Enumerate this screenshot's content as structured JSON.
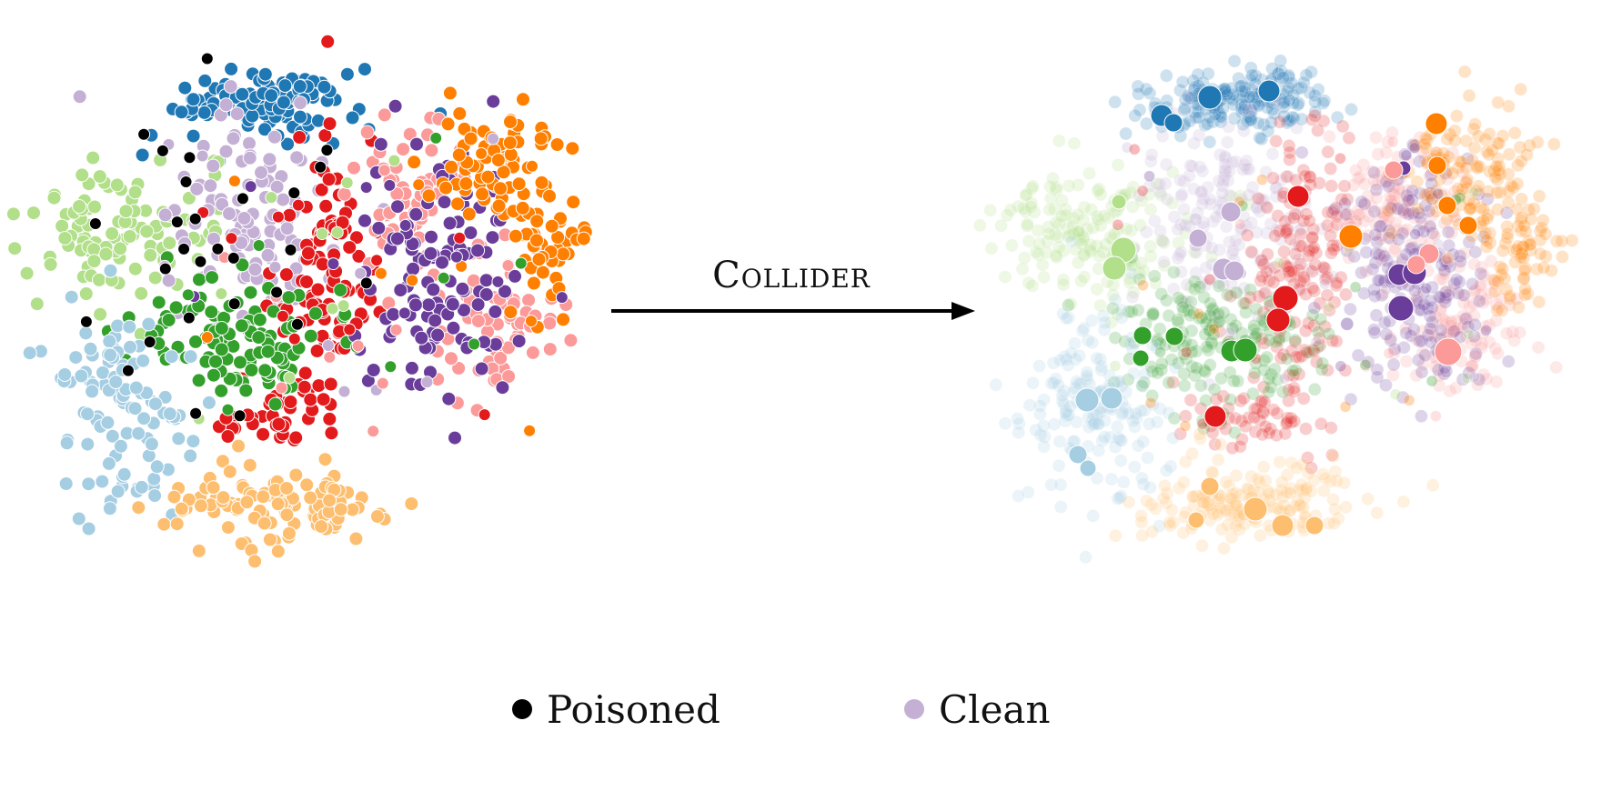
{
  "arrow_label": "Collider",
  "legend": [
    {
      "label": "Poisoned",
      "color": "#000000"
    },
    {
      "label": "Clean",
      "color": "#c5b0d5"
    }
  ],
  "palette": {
    "blue": "#1f78b4",
    "light_blue": "#a6cee3",
    "green": "#33a02c",
    "light_green": "#b2df8a",
    "red": "#e31a1c",
    "pink": "#fb9a99",
    "orange": "#ff7f00",
    "light_orange": "#fdbf6f",
    "purple": "#6a3d9a",
    "lavender": "#c5b0d5",
    "black": "#000000"
  }
}
